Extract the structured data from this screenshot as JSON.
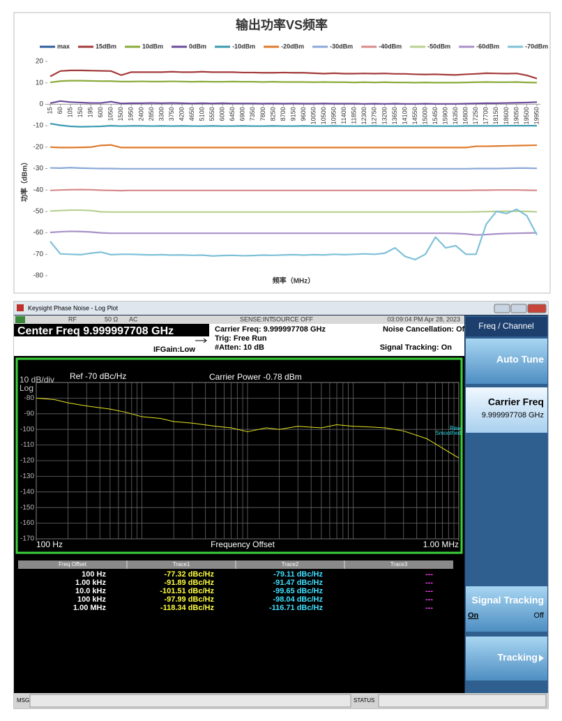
{
  "chart_data": [
    {
      "type": "line",
      "title": "输出功率VS频率",
      "xlabel": "频率（MHz）",
      "ylabel": "功率（dBm）",
      "categories": [
        "15",
        "60",
        "105",
        "150",
        "195",
        "600",
        "1050",
        "1500",
        "1950",
        "2400",
        "2850",
        "3300",
        "3750",
        "4200",
        "4650",
        "5100",
        "5550",
        "6000",
        "6450",
        "6900",
        "7350",
        "7800",
        "8250",
        "8700",
        "9150",
        "9600",
        "10050",
        "10500",
        "10950",
        "11400",
        "11850",
        "12300",
        "12750",
        "13200",
        "13650",
        "14100",
        "14550",
        "15000",
        "15450",
        "15900",
        "16350",
        "16800",
        "17250",
        "17700",
        "18150",
        "18600",
        "19050",
        "19500",
        "19950"
      ],
      "ylim": [
        -80,
        20
      ],
      "yticks": [
        -80,
        -70,
        -60,
        -50,
        -40,
        -30,
        -20,
        -10,
        0,
        10,
        20
      ],
      "grid": false,
      "legend": "top",
      "series": [
        {
          "name": "max",
          "color": "#2e5c9a",
          "values": [
            null,
            null,
            null,
            null,
            null,
            null,
            null,
            null,
            null,
            null,
            null,
            null,
            null,
            null,
            null,
            null,
            null,
            null,
            null,
            null,
            null,
            null,
            null,
            null,
            null,
            null,
            null,
            null,
            null,
            null,
            null,
            null,
            null,
            null,
            null,
            null,
            null,
            null,
            null,
            null,
            null,
            null,
            null,
            null,
            null,
            null,
            null,
            null,
            null
          ]
        },
        {
          "name": "15dBm",
          "color": "#a33a3a",
          "values": [
            13,
            15.5,
            15.8,
            15.8,
            15.7,
            15.6,
            15.5,
            13.6,
            15,
            15,
            15,
            15,
            15.2,
            15,
            15,
            15.2,
            15,
            15,
            15,
            14.8,
            14.8,
            14.7,
            14.7,
            14.8,
            14.7,
            14.7,
            14.5,
            14.3,
            14.5,
            14.3,
            14.3,
            14.4,
            14.3,
            14.4,
            14.2,
            14.2,
            14,
            13.9,
            14,
            13.8,
            13.7,
            14,
            14.2,
            14.5,
            14.4,
            14.3,
            14.4,
            13.5,
            12
          ]
        },
        {
          "name": "10dBm",
          "color": "#8aaa3a",
          "values": [
            10.2,
            10.8,
            11,
            11,
            10.9,
            10.8,
            10.8,
            10.6,
            10.6,
            10.7,
            10.6,
            10.6,
            10.7,
            10.6,
            10.5,
            10.6,
            10.5,
            10.5,
            10.6,
            10.5,
            10.5,
            10.4,
            10.5,
            10.4,
            10.4,
            10.4,
            10.3,
            10.4,
            10.3,
            10.3,
            10.2,
            10.3,
            10.2,
            10.3,
            10.2,
            10.2,
            10.1,
            10.2,
            10.1,
            10.1,
            10.1,
            10.2,
            10.3,
            10.4,
            10.3,
            10.3,
            10.4,
            10.2,
            10.1
          ]
        },
        {
          "name": "0dBm",
          "color": "#6b4a9a",
          "values": [
            0.5,
            1.5,
            1,
            0.8,
            0.6,
            0.6,
            1.2,
            0.4,
            0.5,
            0.5,
            0.6,
            0.5,
            0.6,
            0.5,
            0.4,
            0.5,
            0.4,
            0.5,
            0.4,
            0.4,
            0.4,
            0.3,
            0.4,
            0.3,
            0.4,
            0.3,
            0.3,
            0.4,
            0.3,
            0.3,
            0.3,
            0.2,
            0.3,
            0.2,
            0.3,
            0.2,
            0.2,
            0.3,
            0.2,
            0.2,
            0.2,
            0.3,
            0.4,
            0.5,
            0.5,
            0.6,
            0.7,
            0.8,
            1
          ]
        },
        {
          "name": "-10dBm",
          "color": "#3a9ab0",
          "values": [
            -9,
            -9.8,
            -10.3,
            -10.5,
            -10.4,
            -10.3,
            -10,
            -10.2,
            -10.1,
            -10.1,
            -10.2,
            -10.1,
            -10.2,
            -10.1,
            -10.2,
            -10.2,
            -10.1,
            -10.2,
            -10.2,
            -10.1,
            -10.2,
            -10.2,
            -10.1,
            -10.2,
            -10.2,
            -10.1,
            -10.2,
            -10.2,
            -10.1,
            -10.2,
            -10.2,
            -10.2,
            -10.1,
            -10.2,
            -10.2,
            -10.2,
            -10.2,
            -10.1,
            -10.2,
            -10.2,
            -10.2,
            -10.1,
            -10.1,
            -10.1,
            -10.1,
            -10,
            -10,
            -10,
            -10
          ]
        },
        {
          "name": "-20dBm",
          "color": "#e07a2a",
          "values": [
            -20,
            -20.2,
            -20.2,
            -20.1,
            -20,
            -19.2,
            -19,
            -20.2,
            -20.2,
            -20.2,
            -20.2,
            -20.2,
            -20.2,
            -20.2,
            -20.2,
            -20.2,
            -20.2,
            -20.2,
            -20.2,
            -20.2,
            -20.2,
            -20.2,
            -20.2,
            -20.2,
            -20.2,
            -20.2,
            -20.2,
            -20.2,
            -20.2,
            -20.2,
            -20.2,
            -20.2,
            -20.2,
            -20.2,
            -20.2,
            -20.2,
            -20.2,
            -20.2,
            -20.2,
            -20.2,
            -20.2,
            -20.2,
            -19.6,
            -19.6,
            -19.5,
            -19.4,
            -19.3,
            -19.2,
            -19.1
          ]
        },
        {
          "name": "-30dBm",
          "color": "#8aa8d8",
          "values": [
            -29.7,
            -29.8,
            -29.6,
            -29.8,
            -29.9,
            -30,
            -30,
            -30.1,
            -30.1,
            -30.1,
            -30.1,
            -30.1,
            -30.1,
            -30.1,
            -30.1,
            -30.1,
            -30.1,
            -30.1,
            -30.1,
            -30.1,
            -30.1,
            -30.1,
            -30.1,
            -30.1,
            -30.1,
            -30.1,
            -30.1,
            -30.1,
            -30.1,
            -30.1,
            -30.1,
            -30.1,
            -30.1,
            -30.1,
            -30.1,
            -30.1,
            -30.1,
            -30.1,
            -30.1,
            -30.1,
            -30.1,
            -30.1,
            -30,
            -30,
            -30,
            -29.9,
            -29.8,
            -29.8,
            -29.9
          ]
        },
        {
          "name": "-40dBm",
          "color": "#d88a8a",
          "values": [
            -40.2,
            -40,
            -39.9,
            -39.8,
            -39.9,
            -40.1,
            -40.2,
            -40.3,
            -40.2,
            -40.2,
            -40.2,
            -40.2,
            -40.2,
            -40.2,
            -40.2,
            -40.2,
            -40.2,
            -40.2,
            -40.2,
            -40.2,
            -40.2,
            -40.2,
            -40.2,
            -40.2,
            -40.2,
            -40.2,
            -40.2,
            -40.2,
            -40.2,
            -40.2,
            -40.2,
            -40.2,
            -40.2,
            -40.2,
            -40.2,
            -40.2,
            -40.2,
            -40.2,
            -40.2,
            -40.2,
            -40.2,
            -40.2,
            -40.1,
            -40.1,
            -40,
            -40,
            -40,
            -40.1,
            -40.2
          ]
        },
        {
          "name": "-50dBm",
          "color": "#b8d090",
          "values": [
            -49.8,
            -49.6,
            -49.4,
            -49.4,
            -49.6,
            -50.2,
            -50.3,
            -50.3,
            -50.3,
            -50.3,
            -50.3,
            -50.3,
            -50.3,
            -50.3,
            -50.3,
            -50.3,
            -50.3,
            -50.3,
            -50.3,
            -50.3,
            -50.3,
            -50.3,
            -50.3,
            -50.3,
            -50.3,
            -50.3,
            -50.3,
            -50.3,
            -50.3,
            -50.3,
            -50.3,
            -50.3,
            -50.3,
            -50.3,
            -50.3,
            -50.3,
            -50.3,
            -50.3,
            -50.3,
            -50.3,
            -50.3,
            -50.3,
            -50.2,
            -50.1,
            -50,
            -49.9,
            -49.9,
            -50,
            -50.2
          ]
        },
        {
          "name": "-60dBm",
          "color": "#a890c8",
          "values": [
            -59.8,
            -59.5,
            -59.3,
            -59.4,
            -59.6,
            -60,
            -60.2,
            -60.2,
            -60.2,
            -60.2,
            -60.2,
            -60.2,
            -60.2,
            -60.2,
            -60.2,
            -60.2,
            -60.2,
            -60.2,
            -60.2,
            -60.2,
            -60.2,
            -60.2,
            -60.2,
            -60.2,
            -60.2,
            -60.2,
            -60.2,
            -60.2,
            -60.2,
            -60.2,
            -60.2,
            -60.2,
            -60.2,
            -60.2,
            -60.2,
            -60.2,
            -60.2,
            -60.2,
            -60.2,
            -60.2,
            -60.3,
            -60.5,
            -61,
            -60.8,
            -60.5,
            -60.3,
            -60.2,
            -60.1,
            -60
          ]
        },
        {
          "name": "-70dBm",
          "color": "#7ec0d8",
          "values": [
            -64,
            -69.8,
            -70,
            -70.2,
            -69.5,
            -69,
            -70.2,
            -70,
            -70,
            -70.2,
            -70.3,
            -70.2,
            -70.4,
            -70.3,
            -70.5,
            -70.4,
            -70.8,
            -70.6,
            -70.5,
            -70.7,
            -70.6,
            -70.4,
            -70.5,
            -70.3,
            -70.2,
            -70.4,
            -70.2,
            -70.3,
            -70,
            -70.2,
            -70,
            -69.8,
            -70,
            -69.5,
            -67,
            -71,
            -72.5,
            -70,
            -62,
            -67,
            -66,
            -70,
            -70,
            -56,
            -50,
            -51,
            -49,
            -52,
            -61
          ]
        }
      ]
    },
    {
      "type": "line",
      "log_x": true,
      "xlabel": "Frequency Offset",
      "reference": "Ref  -70 dBc/Hz",
      "scale_label": "10 dB/div",
      "scale_type": "Log",
      "annotation": "Carrier Power -0.78 dBm",
      "trace_labels": [
        "Raw",
        "Smoothed"
      ],
      "xlim": [
        100,
        1000000
      ],
      "ylim": [
        -170,
        -70
      ],
      "yticks": [
        -80,
        -90,
        -100,
        -110,
        -120,
        -130,
        -140,
        -150,
        -160,
        -170
      ],
      "xticks": [
        {
          "value": 100,
          "label": "100 Hz"
        },
        {
          "value": 1000000,
          "label": "1.00 MHz"
        }
      ],
      "xgrid": [
        200,
        300,
        400,
        500,
        600,
        700,
        800,
        900,
        1000,
        2000,
        3000,
        4000,
        5000,
        6000,
        7000,
        8000,
        9000,
        10000,
        20000,
        30000,
        40000,
        50000,
        60000,
        70000,
        80000,
        90000,
        100000,
        200000,
        300000,
        400000,
        500000,
        600000,
        700000,
        800000,
        900000
      ],
      "grid": true,
      "x": [
        100,
        150,
        200,
        300,
        500,
        700,
        1000,
        1500,
        2000,
        3000,
        5000,
        7000,
        10000,
        15000,
        20000,
        30000,
        50000,
        70000,
        100000,
        150000,
        200000,
        300000,
        500000,
        700000,
        1000000
      ],
      "series": [
        {
          "color": "#e8e820",
          "values": [
            -80,
            -81,
            -83,
            -85,
            -87,
            -89,
            -91.9,
            -93,
            -95,
            -96,
            -98,
            -99,
            -101.5,
            -99,
            -100,
            -98,
            -99,
            -97,
            -98,
            -98.5,
            -99,
            -101,
            -106,
            -112,
            -118.3
          ]
        }
      ]
    }
  ],
  "instrument": {
    "window_title": "Keysight Phase Noise - Log Plot",
    "status": [
      "RF",
      "50 Ω",
      "AC",
      "SENSE:INT",
      "SOURCE OFF",
      "03:09:04 PM Apr 28, 2023"
    ],
    "center_freq": "Center Freq 9.999997708 GHz",
    "if_gain": "IFGain:Low",
    "settings": [
      "Carrier Freq: 9.999997708 GHz",
      "Trig: Free Run",
      "#Atten: 10 dB"
    ],
    "noise_cancellation": "Noise Cancellation: Off",
    "signal_tracking": "Signal Tracking: On",
    "table": {
      "header": [
        "Freq Offset",
        "Trace1",
        "Trace2",
        "Trace3"
      ],
      "rows": [
        [
          "100 Hz",
          "-77.32 dBc/Hz",
          "-79.11 dBc/Hz",
          "---"
        ],
        [
          "1.00 kHz",
          "-91.89 dBc/Hz",
          "-91.47 dBc/Hz",
          "---"
        ],
        [
          "10.0 kHz",
          "-101.51 dBc/Hz",
          "-99.65 dBc/Hz",
          "---"
        ],
        [
          "100 kHz",
          "-97.99 dBc/Hz",
          "-98.04 dBc/Hz",
          "---"
        ],
        [
          "1.00 MHz",
          "-118.34 dBc/Hz",
          "-116.71 dBc/Hz",
          "---"
        ]
      ]
    },
    "softkeys": {
      "menu": "Freq / Channel",
      "auto_tune": "Auto Tune",
      "carrier_freq": "Carrier Freq",
      "carrier_freq_value": "9.999997708 GHz",
      "signal_tracking": "Signal Tracking",
      "on": "On",
      "off": "Off",
      "tracking": "Tracking"
    },
    "footer": [
      "MSG",
      "STATUS"
    ]
  }
}
